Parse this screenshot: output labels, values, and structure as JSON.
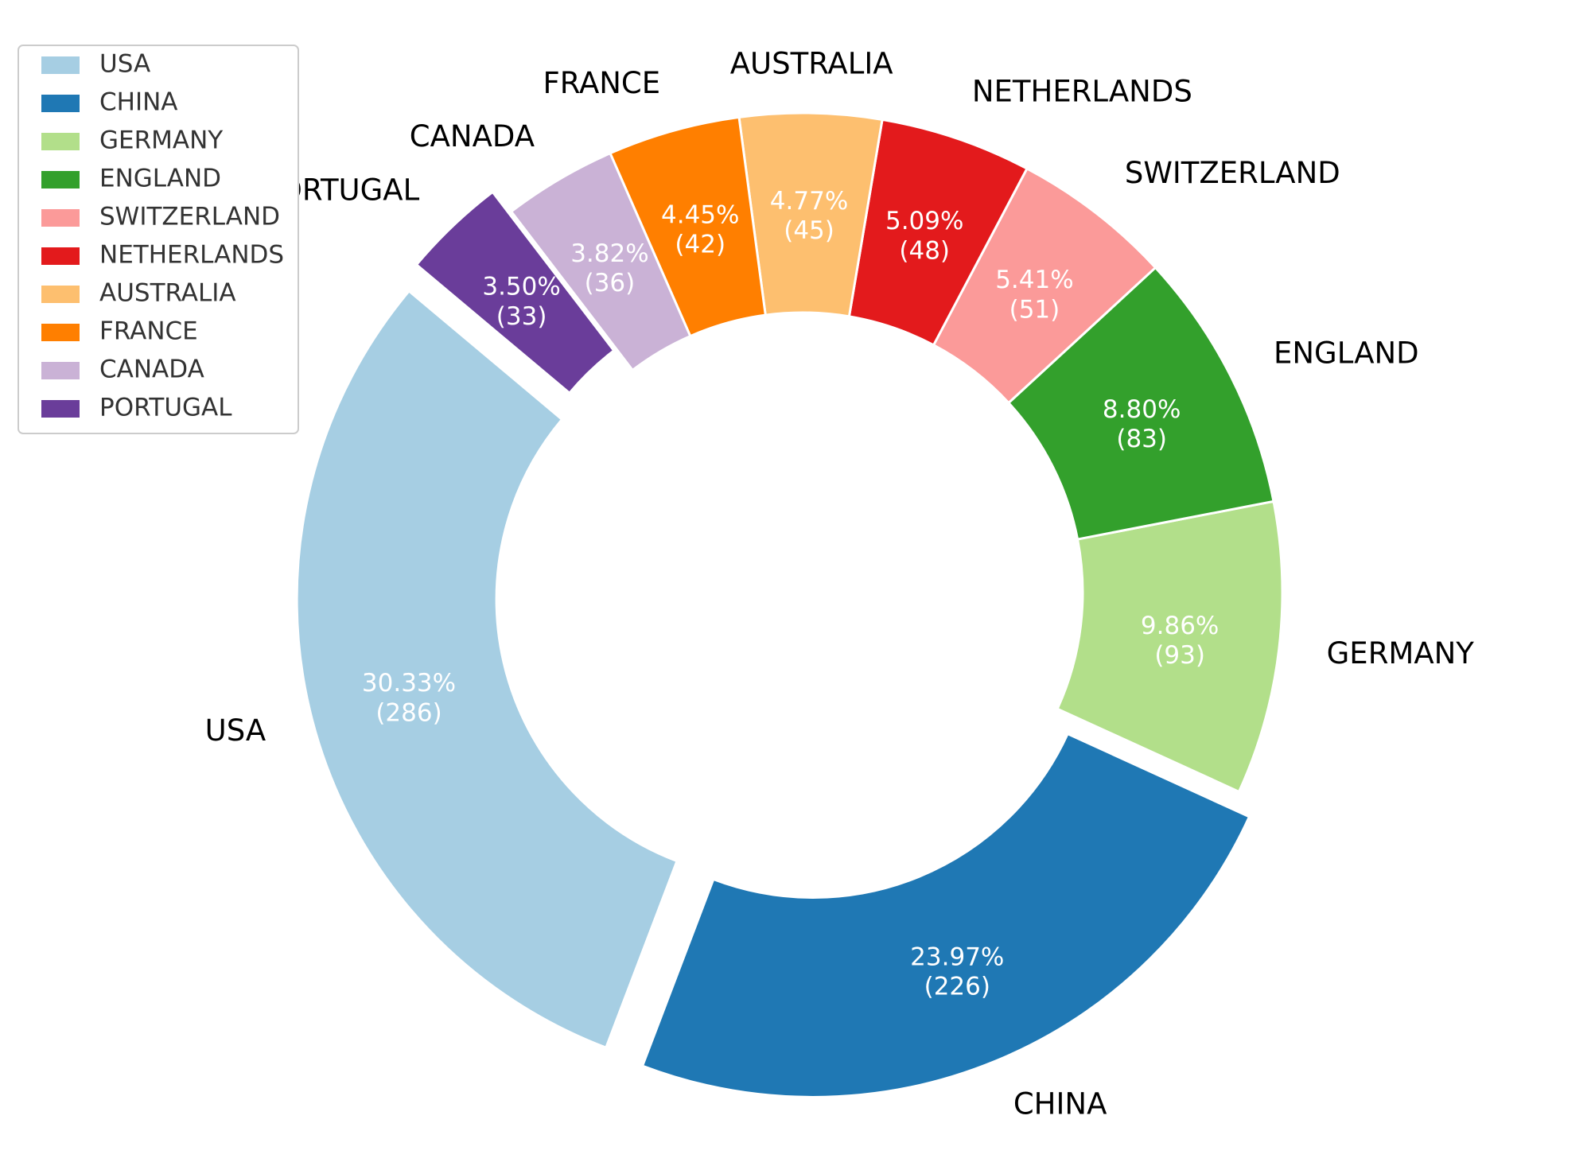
{
  "chart_data": {
    "type": "pie",
    "variant": "donut",
    "title": "",
    "categories": [
      "USA",
      "CHINA",
      "GERMANY",
      "ENGLAND",
      "SWITZERLAND",
      "NETHERLANDS",
      "AUSTRALIA",
      "FRANCE",
      "CANADA",
      "PORTUGAL"
    ],
    "values": [
      286,
      226,
      93,
      83,
      51,
      48,
      45,
      42,
      36,
      33
    ],
    "percent_labels": [
      "30.33%",
      "23.97%",
      "9.86%",
      "8.80%",
      "5.41%",
      "5.09%",
      "4.77%",
      "4.45%",
      "3.82%",
      "3.50%"
    ],
    "count_labels": [
      "(286)",
      "(226)",
      "(93)",
      "(83)",
      "(51)",
      "(48)",
      "(45)",
      "(42)",
      "(36)",
      "(33)"
    ],
    "colors": [
      "#a6cee3",
      "#1f78b4",
      "#b2df8a",
      "#33a02c",
      "#fb9a99",
      "#e31a1c",
      "#fdbf6f",
      "#ff7f00",
      "#cab2d6",
      "#6a3d9a"
    ],
    "exploded": [
      "USA",
      "CHINA",
      "PORTUGAL"
    ],
    "legend": {
      "placement": "top-left",
      "entries": [
        "USA",
        "CHINA",
        "GERMANY",
        "ENGLAND",
        "SWITZERLAND",
        "NETHERLANDS",
        "AUSTRALIA",
        "FRANCE",
        "CANADA",
        "PORTUGAL"
      ]
    }
  }
}
